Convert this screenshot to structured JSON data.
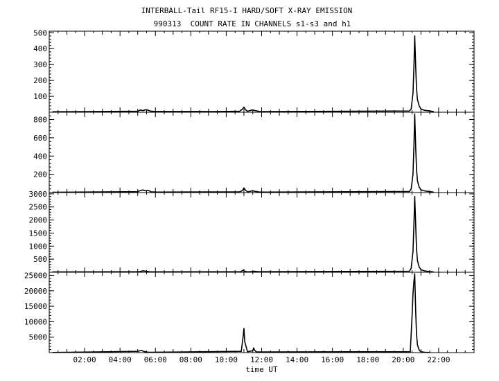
{
  "header": {
    "title": "INTERBALL-Tail RF15-I HARD/SOFT X-RAY EMISSION",
    "subtitle": "990313  COUNT RATE IN CHANNELS s1-s3 and h1"
  },
  "chart_data": {
    "type": "line",
    "title": "INTERBALL-Tail RF15-I HARD/SOFT X-RAY EMISSION",
    "subtitle": "990313  COUNT RATE IN CHANNELS s1-s3 and h1",
    "xlabel": "time UT",
    "xlim_hours": [
      0,
      24
    ],
    "x_ticks": [
      "02:00",
      "04:00",
      "06:00",
      "08:00",
      "10:00",
      "12:00",
      "14:00",
      "16:00",
      "18:00",
      "20:00",
      "22:00"
    ],
    "grid": false,
    "color": "#000000",
    "panels": [
      {
        "ylim": [
          0,
          510
        ],
        "y_ticks": [
          100,
          200,
          300,
          400,
          500
        ],
        "series": {
          "x": [
            0.2,
            5.0,
            5.15,
            5.3,
            5.45,
            5.6,
            5.75,
            6.1,
            8.3,
            9.2,
            10.75,
            10.9,
            11.0,
            11.1,
            11.2,
            11.4,
            11.5,
            11.6,
            11.75,
            11.9,
            20.35,
            20.45,
            20.55,
            20.6,
            20.65,
            20.7,
            20.75,
            20.8,
            20.9,
            21.0,
            21.2,
            21.5,
            21.7
          ],
          "y": [
            3,
            6,
            14,
            10,
            16,
            12,
            6,
            5,
            5,
            4,
            6,
            18,
            32,
            15,
            6,
            12,
            15,
            11,
            8,
            4,
            8,
            20,
            120,
            280,
            480,
            300,
            150,
            80,
            40,
            20,
            12,
            8,
            5
          ]
        }
      },
      {
        "ylim": [
          0,
          880
        ],
        "y_ticks": [
          200,
          400,
          600,
          800
        ],
        "series": {
          "x": [
            0.2,
            5.0,
            5.15,
            5.3,
            5.45,
            5.6,
            5.75,
            6.1,
            10.75,
            10.9,
            11.0,
            11.1,
            11.2,
            11.4,
            11.5,
            11.6,
            11.75,
            11.9,
            20.35,
            20.45,
            20.55,
            20.6,
            20.65,
            20.7,
            20.75,
            20.8,
            20.9,
            21.0,
            21.2,
            21.5,
            21.7
          ],
          "y": [
            4,
            10,
            22,
            28,
            20,
            24,
            8,
            5,
            8,
            20,
            50,
            25,
            8,
            15,
            22,
            14,
            10,
            5,
            12,
            40,
            200,
            500,
            860,
            520,
            260,
            130,
            60,
            30,
            18,
            10,
            6
          ]
        }
      },
      {
        "ylim": [
          0,
          3050
        ],
        "y_ticks": [
          500,
          1000,
          1500,
          2000,
          2500,
          3000
        ],
        "series": {
          "x": [
            0.2,
            5.1,
            5.3,
            5.5,
            5.7,
            10.8,
            10.95,
            11.05,
            11.2,
            11.5,
            11.6,
            11.8,
            20.35,
            20.45,
            20.55,
            20.6,
            20.65,
            20.7,
            20.75,
            20.8,
            20.9,
            21.0,
            21.2,
            21.5,
            21.7
          ],
          "y": [
            10,
            20,
            55,
            35,
            15,
            20,
            70,
            40,
            15,
            30,
            40,
            20,
            40,
            150,
            800,
            1800,
            2900,
            1900,
            900,
            450,
            200,
            100,
            50,
            25,
            15
          ]
        }
      },
      {
        "ylim": [
          0,
          26000
        ],
        "y_ticks": [
          5000,
          10000,
          15000,
          20000,
          25000
        ],
        "series": {
          "x": [
            0.2,
            5.0,
            5.2,
            5.4,
            5.6,
            10.85,
            10.95,
            11.0,
            11.05,
            11.2,
            11.5,
            11.55,
            11.6,
            11.7,
            20.4,
            20.5,
            20.55,
            20.6,
            20.65,
            20.7,
            20.75,
            20.8,
            20.9,
            21.0,
            21.2,
            21.5
          ],
          "y": [
            50,
            400,
            700,
            300,
            100,
            400,
            5000,
            7800,
            3500,
            300,
            600,
            1500,
            800,
            200,
            300,
            12000,
            19000,
            23000,
            25500,
            14000,
            6000,
            2500,
            800,
            300,
            100,
            50
          ]
        }
      }
    ]
  }
}
